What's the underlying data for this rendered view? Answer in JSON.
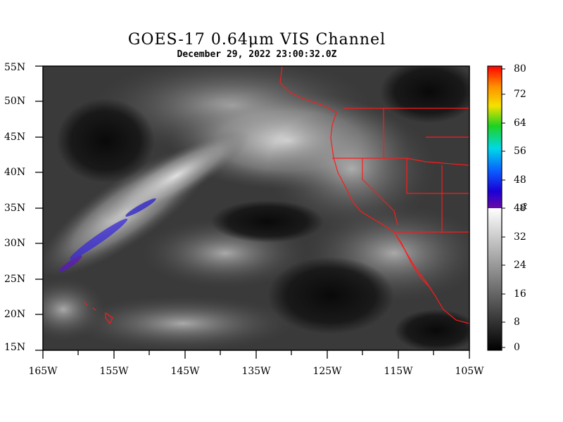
{
  "title": "GOES-17  0.64μm VIS Channel",
  "subtitle": "December 29,  2022 23:00:32.0Z",
  "lat_labels": [
    "55N",
    "50N",
    "45N",
    "40N",
    "35N",
    "30N",
    "25N",
    "20N",
    "15N"
  ],
  "lon_labels": [
    "165W",
    "155W",
    "145W",
    "135W",
    "125W",
    "115W",
    "105W"
  ],
  "colorbar": {
    "labels": [
      "80",
      "72",
      "64",
      "56",
      "48",
      "40",
      "32",
      "24",
      "16",
      "8",
      "0"
    ],
    "unit": "%",
    "range": [
      0,
      80
    ]
  },
  "colors": {
    "boundaries": "#ff1a1a",
    "frame": "#000000"
  }
}
